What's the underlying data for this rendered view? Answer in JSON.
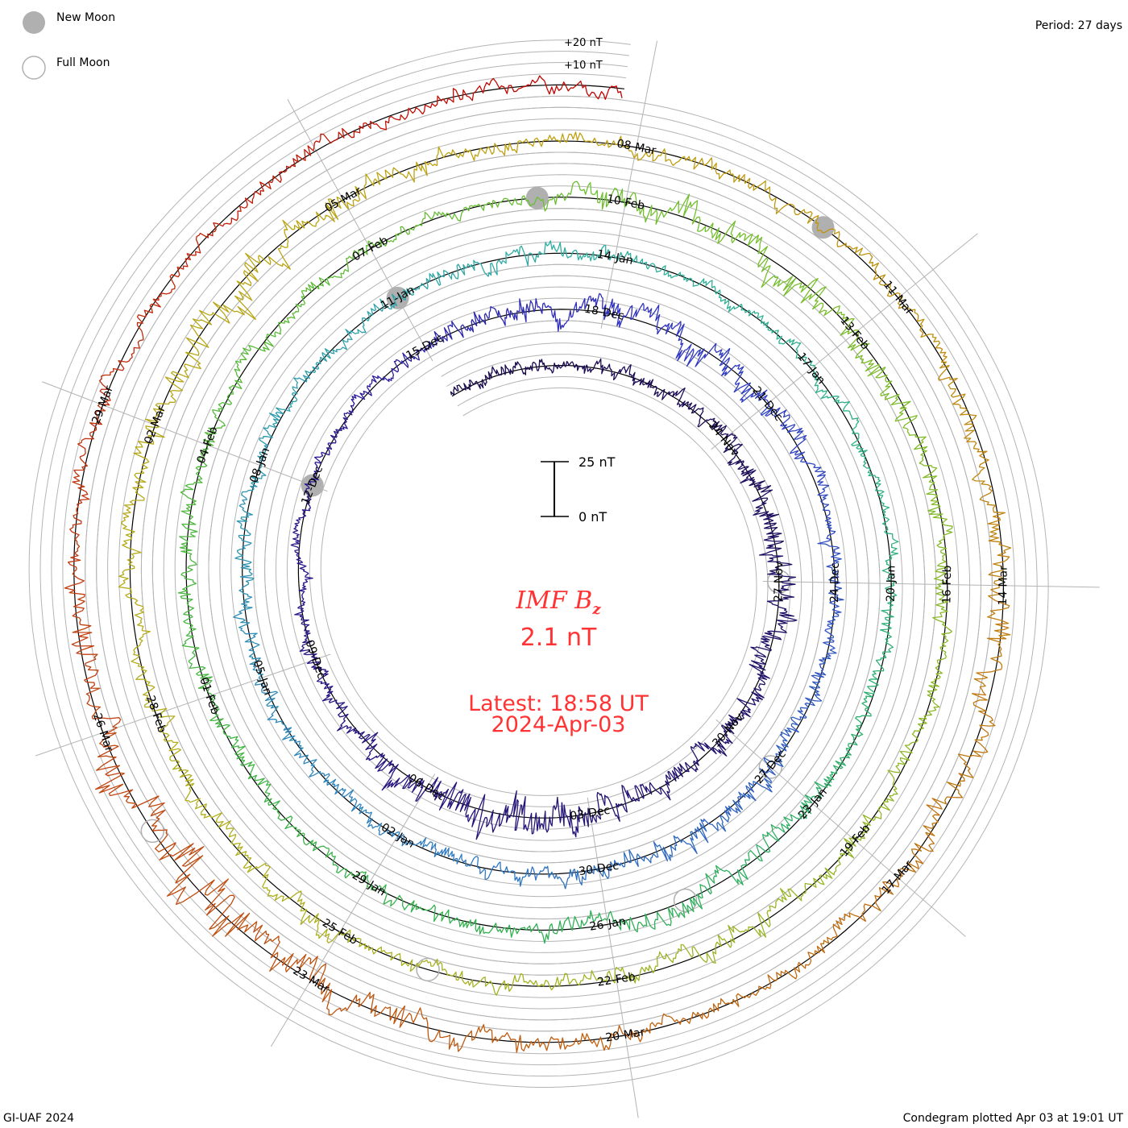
{
  "legend": {
    "new_moon": "New Moon",
    "full_moon": "Full Moon"
  },
  "period": "Period: 27 days",
  "ring_labels": {
    "plus20": "+20 nT",
    "plus10": "+10 nT"
  },
  "scale_bar": {
    "top": "25 nT",
    "bottom": "0 nT"
  },
  "center": {
    "title": "IMF B",
    "title_sub": "z",
    "value": "2.1 nT",
    "latest": "Latest: 18:58 UT",
    "date": "2024-Apr-03"
  },
  "footer": {
    "left": "GI-UAF 2024",
    "right": "Condegram plotted Apr 03 at 19:01 UT"
  },
  "chart_data": {
    "type": "line",
    "subtype": "condegram-spiral",
    "title": "IMF Bz",
    "period_days": 27,
    "units": "nT",
    "latest_value": 2.1,
    "start_day_offset": -30,
    "end_day_offset": 107.8,
    "reference_date": "18-Dec",
    "date_labels": [
      "24-Nov",
      "27-Nov",
      "30-Nov",
      "03-Dec",
      "06-Dec",
      "09-Dec",
      "12-Dec",
      "15-Dec",
      "18-Dec",
      "21-Dec",
      "24-Dec",
      "27-Dec",
      "30-Dec",
      "02-Jan",
      "05-Jan",
      "08-Jan",
      "11-Jan",
      "14-Jan",
      "17-Jan",
      "20-Jan",
      "23-Jan",
      "26-Jan",
      "29-Jan",
      "01-Feb",
      "04-Feb",
      "07-Feb",
      "10-Feb",
      "13-Feb",
      "16-Feb",
      "19-Feb",
      "22-Feb",
      "25-Feb",
      "28-Feb",
      "02-Mar",
      "05-Mar",
      "08-Mar",
      "11-Mar",
      "14-Mar",
      "17-Mar",
      "20-Mar",
      "23-Mar",
      "26-Mar",
      "29-Mar"
    ],
    "date_label_first_day_offset": -24,
    "date_label_step_days": 3,
    "new_moon_day_offsets": [
      -6,
      24,
      53,
      83
    ],
    "full_moon_day_offsets": [
      -21,
      9,
      38,
      68,
      98
    ],
    "variability_nT_per_3day_bin": [
      3,
      4,
      7,
      6,
      5,
      12,
      5,
      3,
      3,
      6,
      8,
      4,
      4,
      7,
      4,
      4,
      5,
      4,
      5,
      3,
      3,
      4,
      6,
      4,
      4,
      5,
      4,
      3,
      10,
      5,
      4,
      6,
      4,
      5,
      5,
      9,
      4,
      4,
      5,
      7,
      4,
      6,
      14,
      5,
      4,
      5,
      4
    ],
    "grid_step_nT": 5,
    "colors": {
      "stops_day": [
        -30,
        -5,
        0,
        15,
        27,
        40,
        54,
        70,
        81,
        90,
        100,
        108
      ],
      "stops_hex": [
        "#1a0a4a",
        "#2a1a90",
        "#3030c0",
        "#3080c0",
        "#30b0a0",
        "#30b050",
        "#70c030",
        "#b0b020",
        "#c0a010",
        "#c07010",
        "#c04010",
        "#c00000"
      ],
      "text_accent": "#ff3333",
      "moon": "#b0b0b0",
      "grid": "#b4b4b4"
    }
  }
}
